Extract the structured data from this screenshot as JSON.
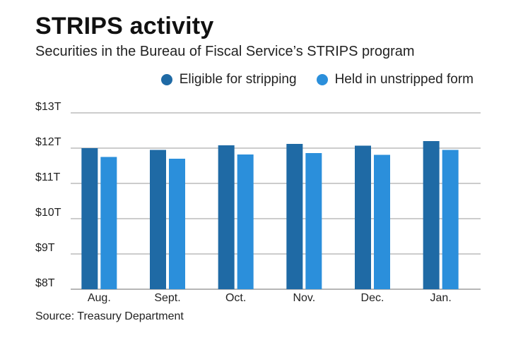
{
  "header": {
    "title": "STRIPS activity",
    "subtitle": "Securities in the Bureau of Fiscal Service’s STRIPS program"
  },
  "legend": {
    "items": [
      {
        "label": "Eligible for stripping",
        "color": "#1f6aa5"
      },
      {
        "label": "Held in unstripped form",
        "color": "#2b8fdb"
      }
    ]
  },
  "source": "Source: Treasury Department",
  "chart_data": {
    "type": "bar",
    "title": "STRIPS activity",
    "subtitle": "Securities in the Bureau of Fiscal Service’s STRIPS program",
    "categories": [
      "Aug.",
      "Sept.",
      "Oct.",
      "Nov.",
      "Dec.",
      "Jan."
    ],
    "series": [
      {
        "name": "Eligible for stripping",
        "color": "#1f6aa5",
        "values": [
          12.0,
          11.95,
          12.08,
          12.12,
          12.07,
          12.2
        ]
      },
      {
        "name": "Held in unstripped form",
        "color": "#2b8fdb",
        "values": [
          11.75,
          11.7,
          11.82,
          11.86,
          11.81,
          11.95
        ]
      }
    ],
    "y_ticks": [
      8,
      9,
      10,
      11,
      12,
      13
    ],
    "y_tick_labels": [
      "$8T",
      "$9T",
      "$10T",
      "$11T",
      "$12T",
      "$13T"
    ],
    "ylim": [
      8,
      13
    ],
    "grid": true,
    "legend_position": "top-right"
  }
}
